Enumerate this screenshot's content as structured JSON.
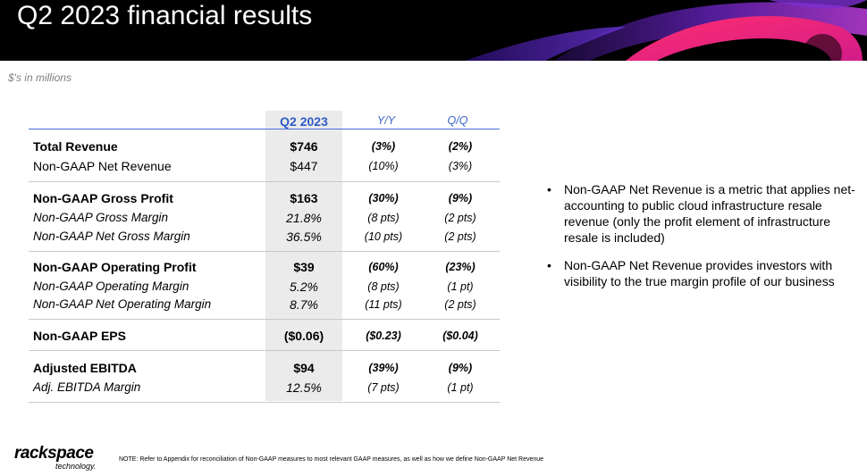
{
  "header": {
    "title": "Q2 2023 financial results"
  },
  "units": "$'s in millions",
  "table": {
    "columns": [
      "Q2 2023",
      "Y/Y",
      "Q/Q"
    ],
    "rows": [
      {
        "label": "Total Revenue",
        "value": "$746",
        "yy": "(3%)",
        "qq": "(2%)"
      },
      {
        "label": "Non-GAAP Net Revenue",
        "value": "$447",
        "yy": "(10%)",
        "qq": "(3%)"
      },
      {
        "label": "Non-GAAP Gross Profit",
        "value": "$163",
        "yy": "(30%)",
        "qq": "(9%)"
      },
      {
        "label": "Non-GAAP Gross Margin",
        "value": "21.8%",
        "yy": "(8 pts)",
        "qq": "(2 pts)"
      },
      {
        "label": "Non-GAAP Net Gross Margin",
        "value": "36.5%",
        "yy": "(10 pts)",
        "qq": "(2 pts)"
      },
      {
        "label": "Non-GAAP Operating Profit",
        "value": "$39",
        "yy": "(60%)",
        "qq": "(23%)"
      },
      {
        "label": "Non-GAAP Operating Margin",
        "value": "5.2%",
        "yy": "(8 pts)",
        "qq": "(1 pt)"
      },
      {
        "label": "Non-GAAP Net Operating Margin",
        "value": "8.7%",
        "yy": "(11 pts)",
        "qq": "(2 pts)"
      },
      {
        "label": "Non-GAAP EPS",
        "value": "($0.06)",
        "yy": "($0.23)",
        "qq": "($0.04)"
      },
      {
        "label": "Adjusted EBITDA",
        "value": "$94",
        "yy": "(39%)",
        "qq": "(9%)"
      },
      {
        "label": "Adj. EBITDA Margin",
        "value": "12.5%",
        "yy": "(7 pts)",
        "qq": "(1 pt)"
      }
    ]
  },
  "bullets": [
    "Non-GAAP Net Revenue is a metric that applies net-accounting to public cloud infrastructure resale revenue (only the profit element of infrastructure resale is included)",
    "Non-GAAP Net Revenue provides investors with visibility to the true margin profile of our business"
  ],
  "bullet_glyph": "•",
  "logo": {
    "name": "rackspace",
    "sub": "technology."
  },
  "footnote": "NOTE: Refer to Appendix for reconciliation of Non-GAAP measures to most relevant GAAP measures, as well as how we define Non-GAAP Net Revenue",
  "colors": {
    "header_bg": "#000000",
    "accent_blue": "#2e5ac8",
    "column_shade": "#ebebeb"
  }
}
